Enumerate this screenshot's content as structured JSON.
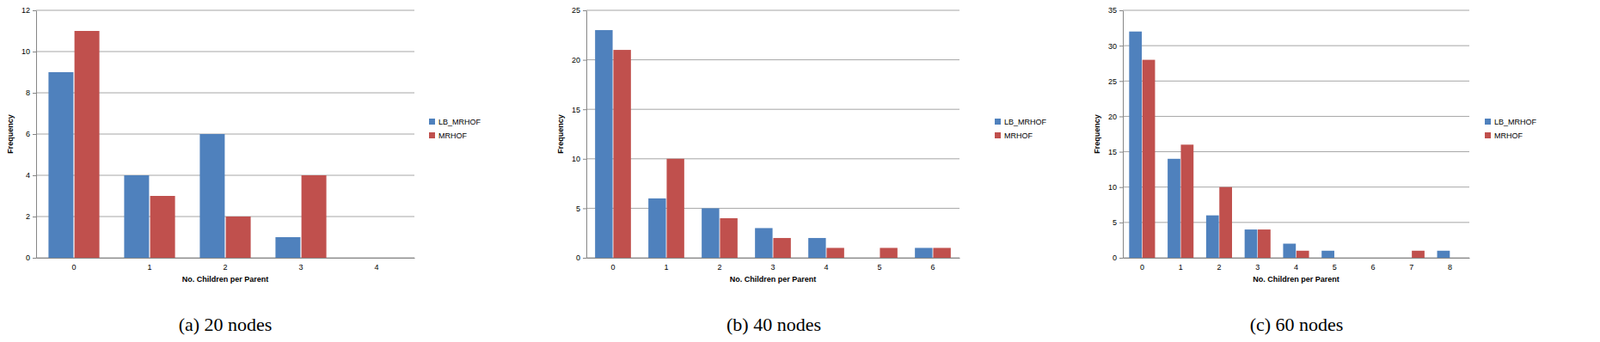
{
  "chart_data": [
    {
      "type": "bar",
      "title": "(a) 20 nodes",
      "x_label": "No. Children per Parent",
      "y_label": "Frequency",
      "categories": [
        "0",
        "1",
        "2",
        "3",
        "4"
      ],
      "series": [
        {
          "name": "LB_MRHOF",
          "color": "#4f81bd",
          "values": [
            9,
            4,
            6,
            1,
            0
          ]
        },
        {
          "name": "MRHOF",
          "color": "#c0504d",
          "values": [
            11,
            3,
            2,
            4,
            0
          ]
        }
      ],
      "ylim": [
        0,
        12
      ],
      "yticks": [
        0,
        2,
        4,
        6,
        8,
        10,
        12
      ],
      "grid": true,
      "legend": "right"
    },
    {
      "type": "bar",
      "title": "(b) 40 nodes",
      "x_label": "No. Children per Parent",
      "y_label": "Frequency",
      "categories": [
        "0",
        "1",
        "2",
        "3",
        "4",
        "5",
        "6"
      ],
      "series": [
        {
          "name": "LB_MRHOF",
          "color": "#4f81bd",
          "values": [
            23,
            6,
            5,
            3,
            2,
            0,
            1
          ]
        },
        {
          "name": "MRHOF",
          "color": "#c0504d",
          "values": [
            21,
            10,
            4,
            2,
            1,
            1,
            1
          ]
        }
      ],
      "ylim": [
        0,
        25
      ],
      "yticks": [
        0,
        5,
        10,
        15,
        20,
        25
      ],
      "grid": true,
      "legend": "right"
    },
    {
      "type": "bar",
      "title": "(c) 60 nodes",
      "x_label": "No. Children per Parent",
      "y_label": "Frequency",
      "categories": [
        "0",
        "1",
        "2",
        "3",
        "4",
        "5",
        "6",
        "7",
        "8"
      ],
      "series": [
        {
          "name": "LB_MRHOF",
          "color": "#4f81bd",
          "values": [
            32,
            14,
            6,
            4,
            2,
            1,
            0,
            0,
            1
          ]
        },
        {
          "name": "MRHOF",
          "color": "#c0504d",
          "values": [
            28,
            16,
            10,
            4,
            1,
            0,
            0,
            1,
            0
          ]
        }
      ],
      "ylim": [
        0,
        35
      ],
      "yticks": [
        0,
        5,
        10,
        15,
        20,
        25,
        30,
        35
      ],
      "grid": true,
      "legend": "right"
    }
  ]
}
